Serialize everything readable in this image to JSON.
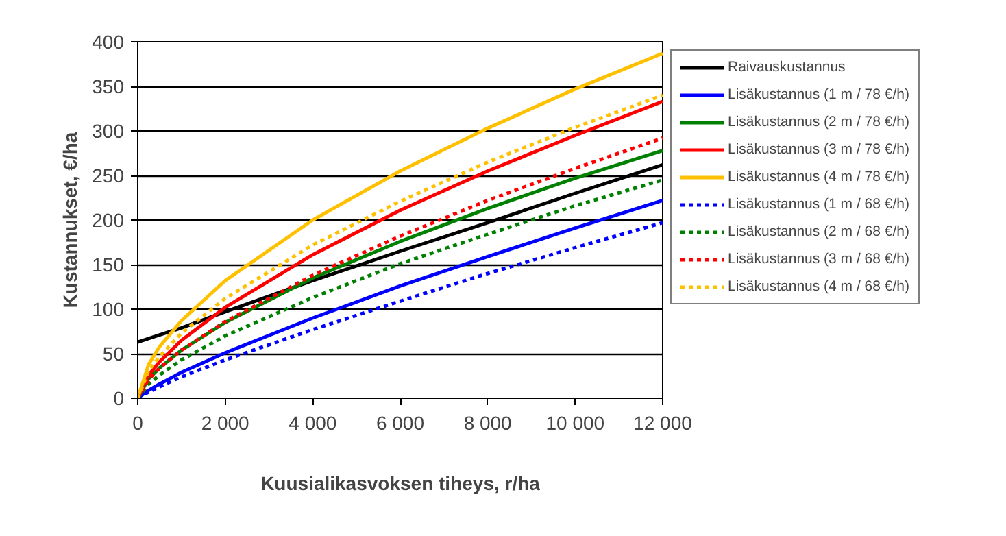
{
  "chart_data": {
    "type": "line",
    "xlabel": "Kuusialikasvoksen tiheys, r/ha",
    "ylabel": "Kustannukset, €/ha",
    "x": [
      0,
      250,
      500,
      1000,
      2000,
      4000,
      6000,
      8000,
      10000,
      12000
    ],
    "xlim": [
      0,
      12000
    ],
    "xticks": [
      0,
      {
        "value": 2000,
        "label": "2 000"
      },
      {
        "value": 4000,
        "label": "4 000"
      },
      {
        "value": 6000,
        "label": "6 000"
      },
      {
        "value": 8000,
        "label": "8 000"
      },
      {
        "value": 10000,
        "label": "10 000"
      },
      {
        "value": 12000,
        "label": "12 000"
      }
    ],
    "ylim": [
      0,
      400
    ],
    "yticks": [
      0,
      50,
      100,
      150,
      200,
      250,
      300,
      350,
      400
    ],
    "grid": "y",
    "legend": "right",
    "marker": "none",
    "series": [
      {
        "name": "Raivauskustannus",
        "color": "#000000",
        "line_style": "solid",
        "values": [
          63,
          67,
          71,
          79,
          97,
          132,
          165,
          197,
          230,
          262
        ]
      },
      {
        "name": "Lisäkustannus (1 m / 78 €/h)",
        "color": "#0000ff",
        "line_style": "solid",
        "values": [
          0,
          9,
          16,
          29,
          51,
          90,
          126,
          159,
          191,
          222
        ]
      },
      {
        "name": "Lisäkustannus (2 m / 78 €/h)",
        "color": "#008000",
        "line_style": "solid",
        "values": [
          0,
          22,
          34,
          54,
          85,
          135,
          176,
          213,
          247,
          278
        ]
      },
      {
        "name": "Lisäkustannus (3 m / 78 €/h)",
        "color": "#ff0000",
        "line_style": "solid",
        "values": [
          0,
          26,
          41,
          65,
          102,
          161,
          211,
          255,
          295,
          333
        ]
      },
      {
        "name": "Lisäkustannus (4 m / 78 €/h)",
        "color": "#ffc000",
        "line_style": "solid",
        "values": [
          0,
          38,
          58,
          87,
          132,
          200,
          255,
          303,
          347,
          387
        ]
      },
      {
        "name": "Lisäkustannus (1 m / 68 €/h)",
        "color": "#0000ff",
        "line_style": "dashed",
        "values": [
          0,
          7,
          13,
          24,
          43,
          77,
          109,
          140,
          169,
          197
        ]
      },
      {
        "name": "Lisäkustannus (2 m / 68 €/h)",
        "color": "#008000",
        "line_style": "dashed",
        "values": [
          0,
          16,
          26,
          43,
          70,
          113,
          151,
          184,
          216,
          245
        ]
      },
      {
        "name": "Lisäkustannus (3 m / 68 €/h)",
        "color": "#ff0000",
        "line_style": "dashed",
        "values": [
          0,
          21,
          34,
          54,
          86,
          138,
          182,
          222,
          258,
          292
        ]
      },
      {
        "name": "Lisäkustannus (4 m / 68 €/h)",
        "color": "#ffc000",
        "line_style": "dashed",
        "values": [
          0,
          31,
          47,
          73,
          112,
          172,
          221,
          265,
          304,
          340
        ]
      }
    ]
  }
}
